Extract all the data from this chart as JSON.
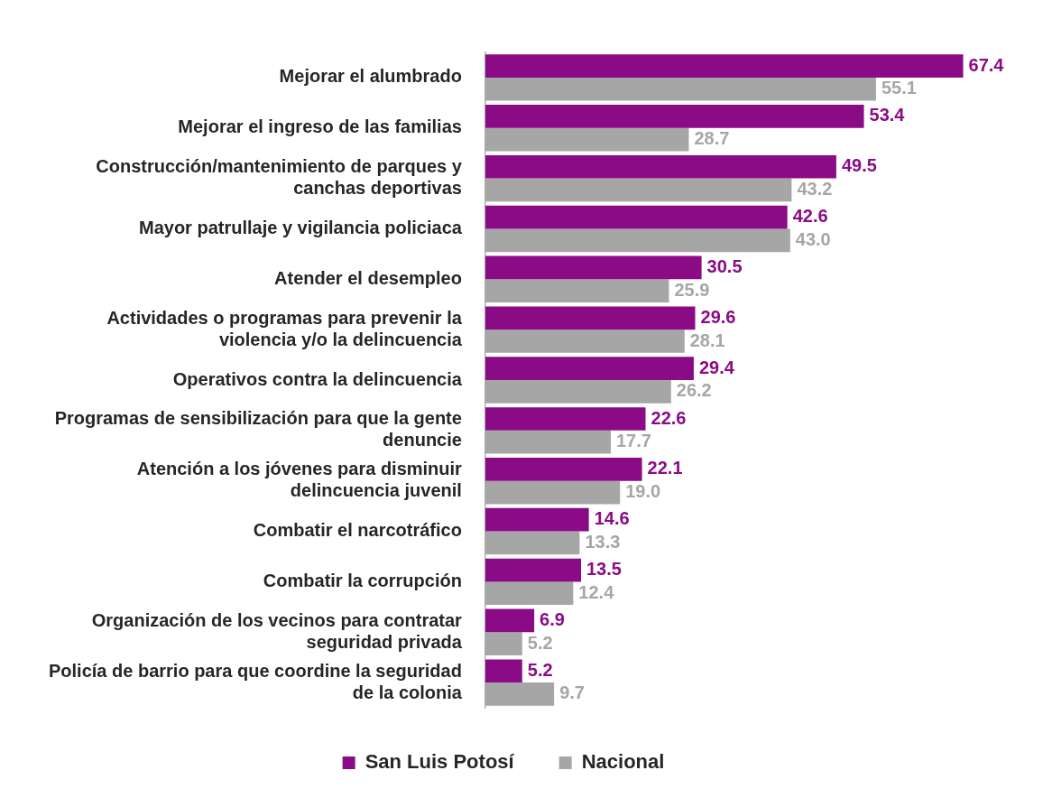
{
  "chart_data": {
    "type": "bar",
    "orientation": "horizontal",
    "categories": [
      "Mejorar el alumbrado",
      "Mejorar el ingreso de las familias",
      "Construcción/mantenimiento de parques y canchas deportivas",
      "Mayor patrullaje y vigilancia policiaca",
      "Atender el desempleo",
      "Actividades o programas para prevenir la violencia y/o la delincuencia",
      "Operativos contra la delincuencia",
      "Programas de sensibilización para que la gente denuncie",
      "Atención a los jóvenes para disminuir delincuencia juvenil",
      "Combatir el narcotráfico",
      "Combatir la corrupción",
      "Organización de los vecinos para contratar seguridad privada",
      "Policía de barrio para que coordine la seguridad de la colonia"
    ],
    "series": [
      {
        "name": "San Luis Potosí",
        "color": "#8b0a86",
        "values": [
          67.4,
          53.4,
          49.5,
          42.6,
          30.5,
          29.6,
          29.4,
          22.6,
          22.1,
          14.6,
          13.5,
          6.9,
          5.2
        ],
        "value_labels": [
          "67.4",
          "53.4",
          "49.5",
          "42.6",
          "30.5",
          "29.6",
          "29.4",
          "22.6",
          "22.1",
          "14.6",
          "13.5",
          "6.9",
          "5.2"
        ]
      },
      {
        "name": "Nacional",
        "color": "#a6a6a6",
        "values": [
          55.1,
          28.7,
          43.2,
          43.0,
          25.9,
          28.1,
          26.2,
          17.7,
          19.0,
          13.3,
          12.4,
          5.2,
          9.7
        ],
        "value_labels": [
          "55.1",
          "28.7",
          "43.2",
          "43.0",
          "25.9",
          "28.1",
          "26.2",
          "17.7",
          "19.0",
          "13.3",
          "12.4",
          "5.2",
          "9.7"
        ]
      }
    ],
    "legend": "bottom"
  }
}
